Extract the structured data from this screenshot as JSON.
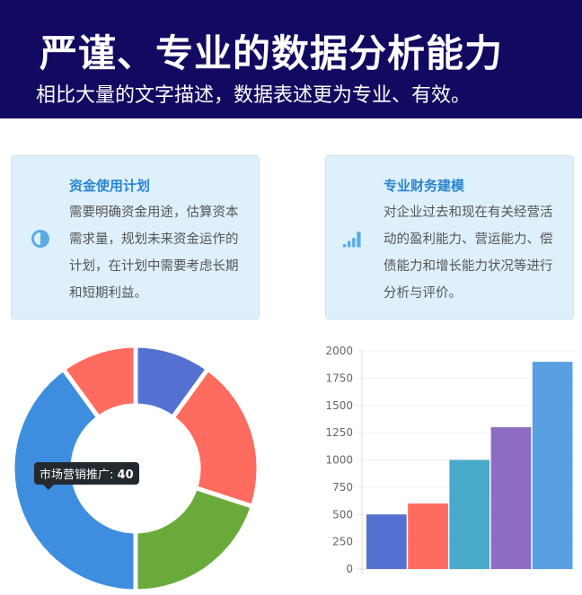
{
  "header": {
    "title": "严谨、专业的数据分析能力",
    "subtitle": "相比大量的文字描述，数据表述更为专业、有效。"
  },
  "cards": [
    {
      "title": "资金使用计划",
      "body": "需要明确资金用途，估算资本需求量，规划未来资金运作的计划，在计划中需要考虑长期和短期利益。",
      "icon": "half-circle-icon"
    },
    {
      "title": "专业财务建模",
      "body": "对企业过去和现在有关经营活动的盈利能力、营运能力、偿债能力和增长能力状况等进行分析与评价。",
      "icon": "signal-bars-icon"
    }
  ],
  "tooltip": {
    "label": "市场营销推广",
    "value": "40"
  },
  "chart_data": [
    {
      "type": "pie",
      "donut": true,
      "values": [
        10,
        20,
        20,
        40,
        10
      ],
      "colors": [
        "#5470d0",
        "#ff6b5e",
        "#6aaa3a",
        "#3e8ee0",
        "#ff6b5e"
      ],
      "hovered_label": "市场营销推广"
    },
    {
      "type": "bar",
      "values": [
        500,
        600,
        1000,
        1300,
        1900
      ],
      "colors": [
        "#5470d0",
        "#ff6b5e",
        "#48aac8",
        "#8e6cc4",
        "#58a0e2"
      ],
      "ylim": [
        0,
        2000
      ],
      "yticks": [
        "0",
        "250",
        "500",
        "750",
        "1000",
        "1250",
        "1500",
        "1750",
        "2000"
      ],
      "grid": true
    }
  ]
}
